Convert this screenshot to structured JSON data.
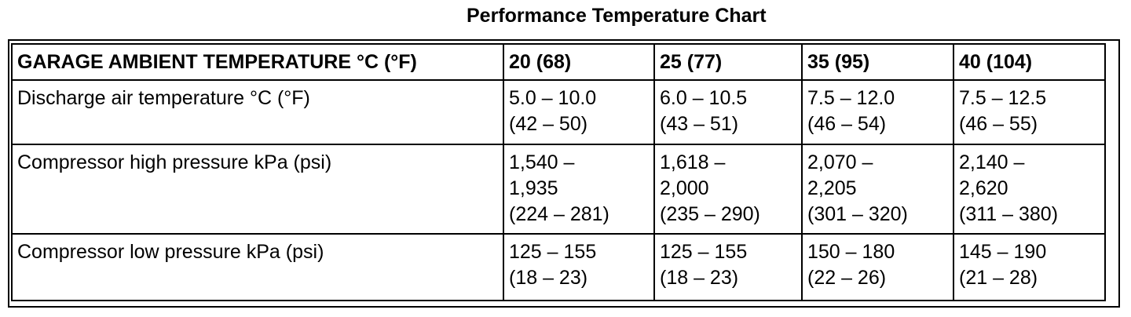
{
  "title": "Performance Temperature Chart",
  "table": {
    "header": {
      "label": "GARAGE AMBIENT TEMPERATURE °C (°F)",
      "columns": [
        "20 (68)",
        "25 (77)",
        "35 (95)",
        "40 (104)"
      ]
    },
    "rows": [
      {
        "label": "Discharge air temperature °C (°F)",
        "cells": [
          [
            "5.0 – 10.0",
            "(42 – 50)"
          ],
          [
            "6.0 – 10.5",
            "(43 – 51)"
          ],
          [
            "7.5 – 12.0",
            "(46 – 54)"
          ],
          [
            "7.5 – 12.5",
            "(46 – 55)"
          ]
        ]
      },
      {
        "label": "Compressor high pressure kPa (psi)",
        "cells": [
          [
            "1,540 –",
            "1,935",
            "(224 – 281)"
          ],
          [
            "1,618 –",
            "2,000",
            "(235 – 290)"
          ],
          [
            "2,070 –",
            "2,205",
            "(301 – 320)"
          ],
          [
            "2,140 –",
            "2,620",
            "(311 – 380)"
          ]
        ]
      },
      {
        "label": "Compressor low pressure kPa (psi)",
        "cells": [
          [
            "125 – 155",
            "(18 – 23)"
          ],
          [
            "125 – 155",
            "(18 – 23)"
          ],
          [
            "150 – 180",
            "(22 – 26)"
          ],
          [
            "145 – 190",
            "(21 – 28)"
          ]
        ]
      }
    ]
  }
}
